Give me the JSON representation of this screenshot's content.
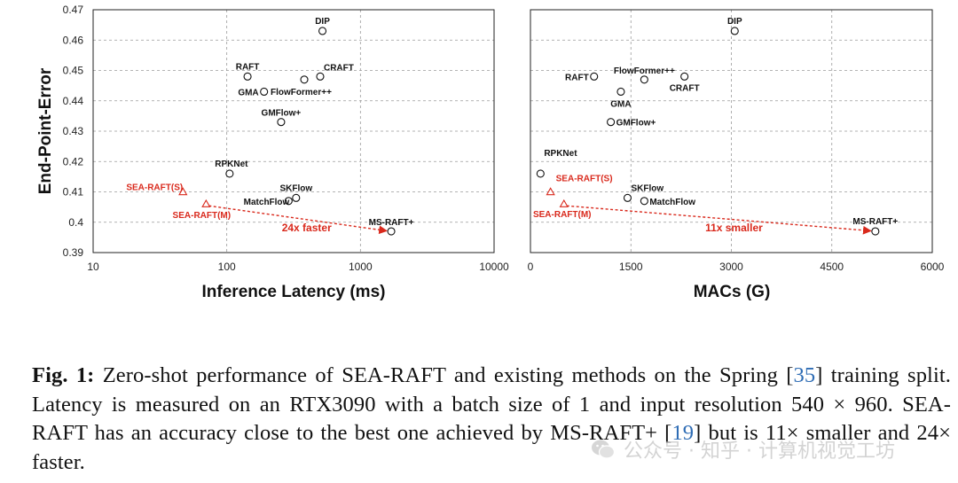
{
  "chart_data": [
    {
      "type": "scatter",
      "xlabel": "Inference Latency (ms)",
      "ylabel": "End-Point-Error",
      "xscale": "log",
      "xlim": [
        10,
        10000
      ],
      "ylim": [
        0.39,
        0.47
      ],
      "xticks": [
        "10",
        "100",
        "1000",
        "10000"
      ],
      "yticks": [
        "0.39",
        "0.4",
        "0.41",
        "0.42",
        "0.43",
        "0.44",
        "0.45",
        "0.46",
        "0.47"
      ],
      "grid": true,
      "points": [
        {
          "label": "DIP",
          "x": 520,
          "y": 0.463,
          "marker": "circle",
          "color": "#111111"
        },
        {
          "label": "RAFT",
          "x": 143,
          "y": 0.448,
          "marker": "circle",
          "color": "#111111"
        },
        {
          "label": "CRAFT",
          "x": 500,
          "y": 0.448,
          "marker": "circle",
          "color": "#111111"
        },
        {
          "label": "FlowFormer++",
          "x": 380,
          "y": 0.447,
          "marker": "circle",
          "color": "#111111"
        },
        {
          "label": "GMA",
          "x": 190,
          "y": 0.443,
          "marker": "circle",
          "color": "#111111"
        },
        {
          "label": "GMFlow+",
          "x": 255,
          "y": 0.433,
          "marker": "circle",
          "color": "#111111"
        },
        {
          "label": "RPKNet",
          "x": 105,
          "y": 0.416,
          "marker": "circle",
          "color": "#111111"
        },
        {
          "label": "SKFlow",
          "x": 330,
          "y": 0.408,
          "marker": "circle",
          "color": "#111111"
        },
        {
          "label": "MatchFlow",
          "x": 290,
          "y": 0.407,
          "marker": "circle",
          "color": "#111111"
        },
        {
          "label": "MS-RAFT+",
          "x": 1700,
          "y": 0.397,
          "marker": "circle",
          "color": "#111111"
        },
        {
          "label": "SEA-RAFT(S)",
          "x": 47,
          "y": 0.41,
          "marker": "triangle",
          "color": "#d9291c"
        },
        {
          "label": "SEA-RAFT(M)",
          "x": 70,
          "y": 0.406,
          "marker": "triangle",
          "color": "#d9291c"
        }
      ],
      "annotations": [
        {
          "text": "24x faster",
          "from": "SEA-RAFT(M)",
          "to": "MS-RAFT+",
          "color": "#d9291c"
        }
      ]
    },
    {
      "type": "scatter",
      "xlabel": "MACs (G)",
      "ylabel": "",
      "xlim": [
        0,
        6000
      ],
      "ylim": [
        0.39,
        0.47
      ],
      "xticks": [
        "0",
        "1500",
        "3000",
        "4500",
        "6000"
      ],
      "grid": true,
      "points": [
        {
          "label": "DIP",
          "x": 3050,
          "y": 0.463,
          "marker": "circle",
          "color": "#111111"
        },
        {
          "label": "RAFT",
          "x": 950,
          "y": 0.448,
          "marker": "circle",
          "color": "#111111"
        },
        {
          "label": "FlowFormer++",
          "x": 1700,
          "y": 0.447,
          "marker": "circle",
          "color": "#111111"
        },
        {
          "label": "CRAFT",
          "x": 2300,
          "y": 0.448,
          "marker": "circle",
          "color": "#111111"
        },
        {
          "label": "GMA",
          "x": 1350,
          "y": 0.443,
          "marker": "circle",
          "color": "#111111"
        },
        {
          "label": "GMFlow+",
          "x": 1200,
          "y": 0.433,
          "marker": "circle",
          "color": "#111111"
        },
        {
          "label": "RPKNet",
          "x": 150,
          "y": 0.416,
          "marker": "circle",
          "color": "#111111"
        },
        {
          "label": "SKFlow",
          "x": 1450,
          "y": 0.408,
          "marker": "circle",
          "color": "#111111"
        },
        {
          "label": "MatchFlow",
          "x": 1700,
          "y": 0.407,
          "marker": "circle",
          "color": "#111111"
        },
        {
          "label": "MS-RAFT+",
          "x": 5150,
          "y": 0.397,
          "marker": "circle",
          "color": "#111111"
        },
        {
          "label": "SEA-RAFT(S)",
          "x": 300,
          "y": 0.41,
          "marker": "triangle",
          "color": "#d9291c"
        },
        {
          "label": "SEA-RAFT(M)",
          "x": 500,
          "y": 0.406,
          "marker": "triangle",
          "color": "#d9291c"
        }
      ],
      "annotations": [
        {
          "text": "11x smaller",
          "from": "SEA-RAFT(M)",
          "to": "MS-RAFT+",
          "color": "#d9291c"
        }
      ]
    }
  ],
  "caption": {
    "label": "Fig. 1:",
    "part1": " Zero-shot performance of SEA-RAFT and existing methods on the Spring [",
    "cite1": "35",
    "part2": "] training split. Latency is measured on an RTX3090 with a batch size of 1 and input resolution 540 × 960. SEA-RAFT has an accuracy close to the best one achieved by MS-RAFT+ [",
    "cite2": "19",
    "part3": "] but is 11× smaller and 24× faster."
  },
  "watermark": {
    "text": "公众号 · 知乎 · 计算机视觉工坊",
    "icon": "wechat-icon"
  },
  "colors": {
    "accent_red": "#d9291c",
    "cite_blue": "#2f6db5",
    "grid": "#9a9a9a"
  }
}
